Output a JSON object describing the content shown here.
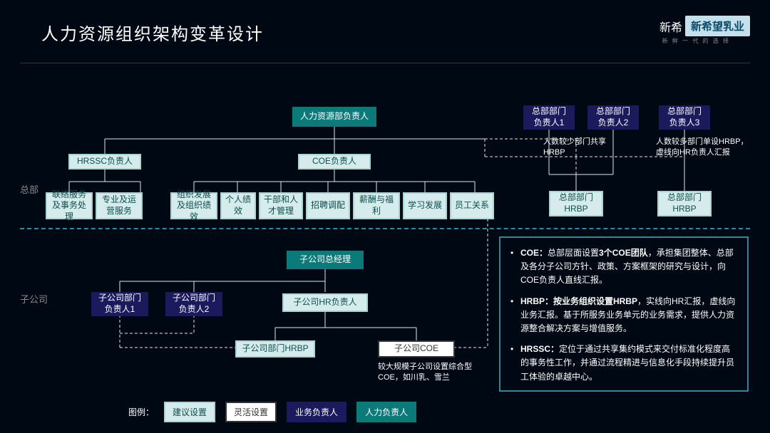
{
  "title": "人力资源组织架构变革设计",
  "logo": {
    "dark": "新希",
    "light": "新希望乳业",
    "sub": "新 鲜 一 代 的 选 择"
  },
  "sections": {
    "hq": "总部",
    "sub": "子公司"
  },
  "colors": {
    "teal": "#0d7a7a",
    "navy": "#1a1a5c",
    "pale": "#d6ecec",
    "white": "#ffffff",
    "border_teal": "#2a8a9a",
    "bg": "#000814"
  },
  "nodes": {
    "hr_head": "人力资源部负责人",
    "hrssc_head": "HRSSC负责人",
    "coe_head": "COE负责人",
    "coe_children": [
      "联络服务及事务处理",
      "专业及运营服务",
      "组织发展及组织绩效",
      "个人绩效",
      "干部和人才管理",
      "招聘调配",
      "薪酬与福利",
      "学习发展",
      "员工关系"
    ],
    "hq_dept1": "总部部门\n负责人1",
    "hq_dept2": "总部部门\n负责人2",
    "hq_dept3": "总部部门\n负责人3",
    "hq_hrbp_a": "总部部门\nHRBP",
    "hq_hrbp_b": "总部部门\nHRBP",
    "sub_gm": "子公司总经理",
    "sub_hr_head": "子公司HR负责人",
    "sub_dept1": "子公司部门\n负责人1",
    "sub_dept2": "子公司部门\n负责人2",
    "sub_hrbp": "子公司部门HRBP",
    "sub_coe": "子公司COE"
  },
  "annotations": {
    "few": "人数较少部门共享HRBP",
    "many": "人数较多部门单设HRBP，虚线向HR负责人汇报",
    "sub_coe_note": "较大规模子公司设置综合型COE，如川乳、雪兰"
  },
  "desc": {
    "coe": "COE：总部层面设置3个COE团队，承担集团整体、总部及各分子公司方针、政策、方案框架的研究与设计，向COE负责人直线汇报。",
    "hrbp": "HRBP：按业务组织设置HRBP，实线向HR汇报，虚线向业务汇报。基于所服务业务单元的业务需求，提供人力资源整合解决方案与增值服务。",
    "hrssc": "HRSSC：定位于通过共享集约模式来交付标准化程度高的事务性工作，并通过流程精进与信息化手段持续提升员工体验的卓越中心。"
  },
  "legend": {
    "label": "图例：",
    "items": [
      {
        "text": "建议设置",
        "cls": "box-pale"
      },
      {
        "text": "灵活设置",
        "cls": "box-white"
      },
      {
        "text": "业务负责人",
        "cls": "box-navy"
      },
      {
        "text": "人力负责人",
        "cls": "box-teal"
      }
    ]
  }
}
